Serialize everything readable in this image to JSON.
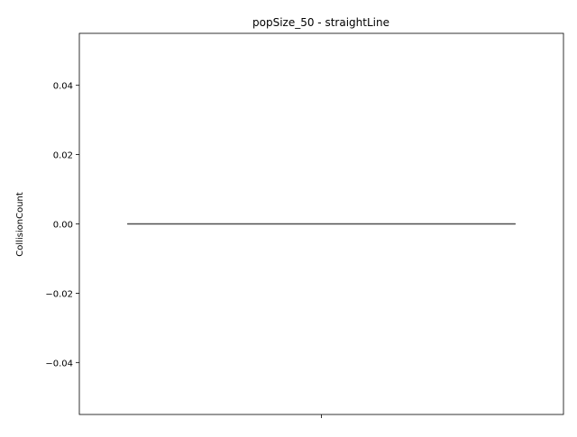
{
  "chart_data": {
    "type": "box",
    "title": "popSize_50 - straightLine",
    "xlabel": "",
    "ylabel": "CollisionCount",
    "ylim": [
      -0.055,
      0.055
    ],
    "y_ticks": [
      0.04,
      0.02,
      0.0,
      -0.02,
      -0.04
    ],
    "y_tick_labels": [
      "0.04",
      "0.02",
      "0.00",
      "−0.02",
      "−0.04"
    ],
    "x_ticks": [
      ""
    ],
    "series": [
      {
        "values": [
          0,
          0,
          0,
          0,
          0
        ],
        "median": 0.0,
        "q1": 0.0,
        "q3": 0.0,
        "whisker_low": 0.0,
        "whisker_high": 0.0
      }
    ],
    "line_color": "#4d4d4d",
    "grid": false
  }
}
